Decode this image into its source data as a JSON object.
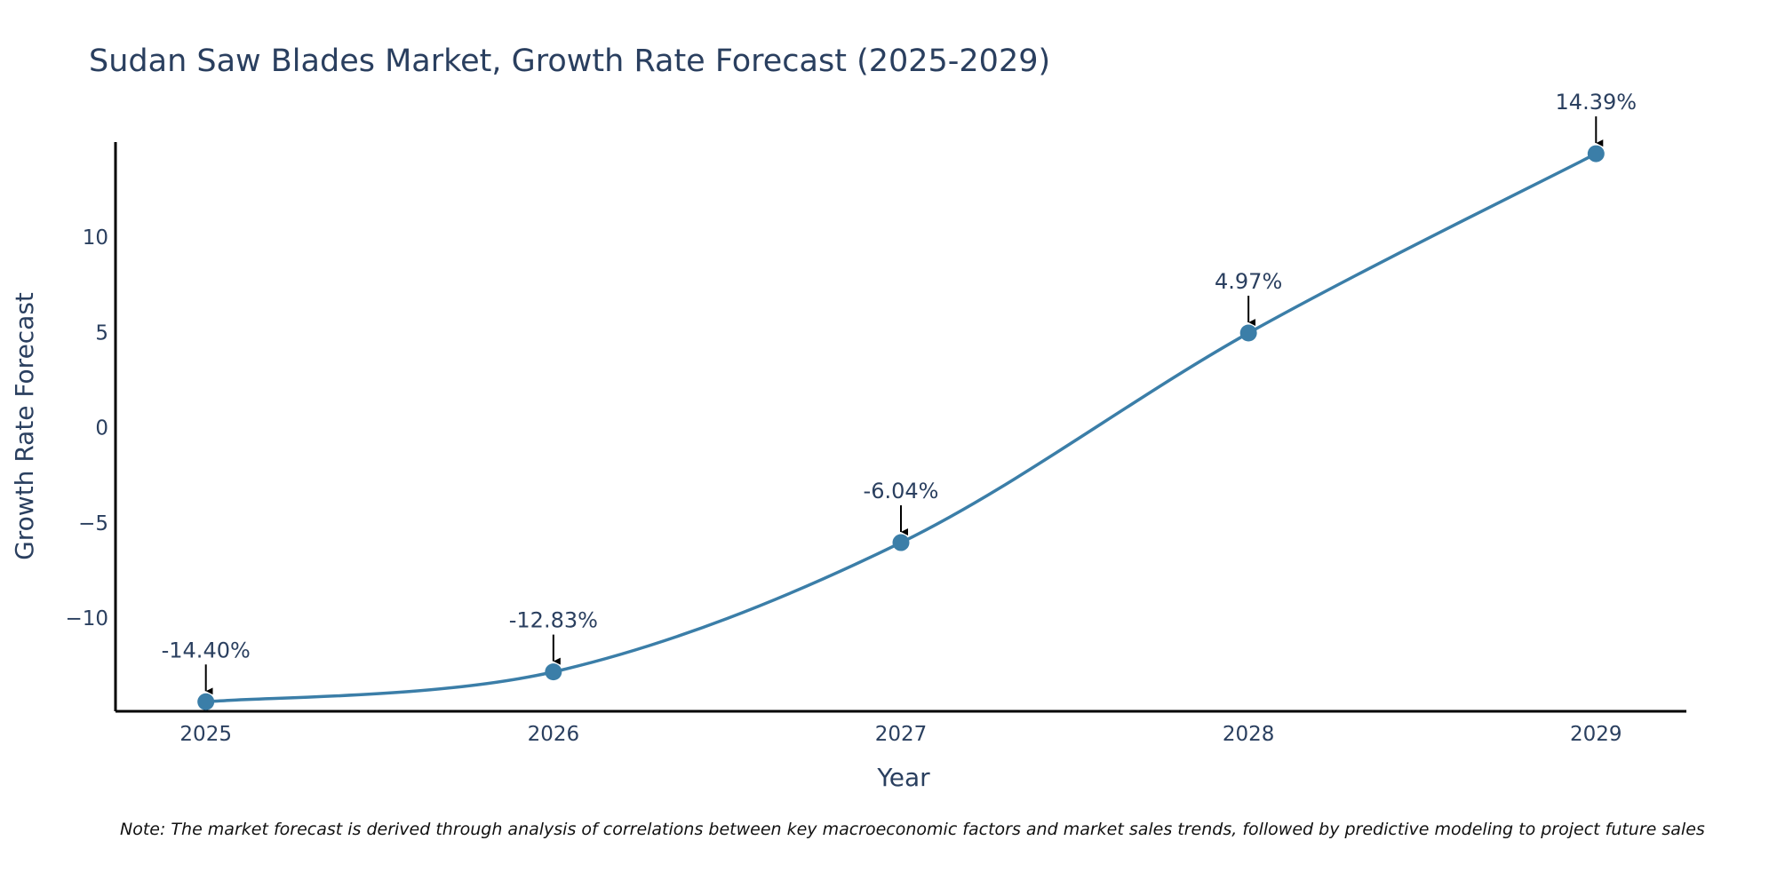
{
  "chart_data": {
    "type": "line",
    "title": "Sudan Saw Blades Market, Growth Rate Forecast (2025-2029)",
    "xlabel": "Year",
    "ylabel": "Growth Rate Forecast",
    "x": [
      2025,
      2026,
      2027,
      2028,
      2029
    ],
    "x_tick_labels": [
      "2025",
      "2026",
      "2027",
      "2028",
      "2029"
    ],
    "series": [
      {
        "values": [
          -14.4,
          -12.83,
          -6.04,
          4.97,
          14.39
        ],
        "labels": [
          "-14.40%",
          "-12.83%",
          "-6.04%",
          "4.97%",
          "14.39%"
        ]
      }
    ],
    "y_ticks": [
      10,
      5,
      0,
      -5,
      -10
    ],
    "y_tick_labels": [
      "10",
      "5",
      "0",
      "−5",
      "−10"
    ],
    "xlim": [
      2024.74,
      2029.26
    ],
    "ylim": [
      -14.9,
      15
    ],
    "grid": false,
    "line_color": "#3b7ea8",
    "marker_color": "#3b7ea8",
    "arrow_color": "#000000",
    "note": "Note: The market forecast is derived through analysis of correlations between key macroeconomic factors and market sales trends, followed by predictive modeling to project future sales"
  }
}
